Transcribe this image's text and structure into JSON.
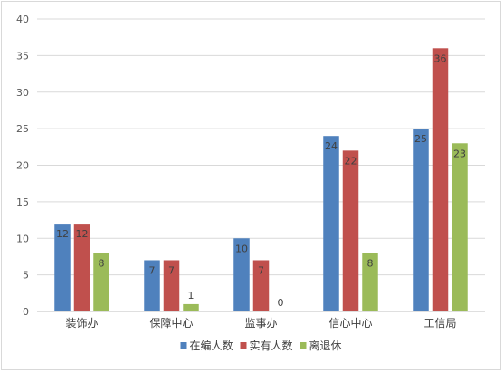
{
  "chart_data": {
    "type": "bar",
    "categories": [
      "装饰办",
      "保障中心",
      "监事办",
      "信心中心",
      "工信局"
    ],
    "series": [
      {
        "name": "在编人数",
        "values": [
          12,
          7,
          10,
          24,
          25
        ],
        "color": "#4f81bd"
      },
      {
        "name": "实有人数",
        "values": [
          12,
          7,
          7,
          22,
          36
        ],
        "color": "#c0504d"
      },
      {
        "name": "离退休",
        "values": [
          8,
          1,
          0,
          8,
          23
        ],
        "color": "#9bbb59"
      }
    ],
    "ylim": [
      0,
      40
    ],
    "yticks": [
      0,
      5,
      10,
      15,
      20,
      25,
      30,
      35,
      40
    ],
    "grid": true,
    "legend": "bottom",
    "title": "",
    "xlabel": "",
    "ylabel": ""
  }
}
